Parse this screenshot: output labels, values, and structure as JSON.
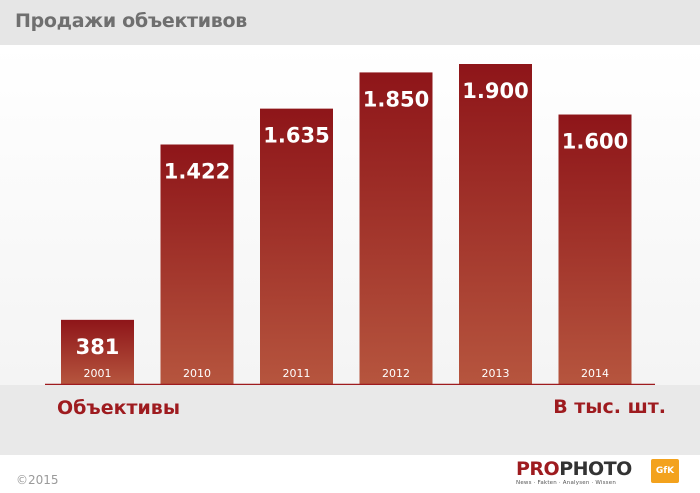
{
  "header": {
    "title": "Продажи объективов"
  },
  "chart_data": {
    "type": "bar",
    "title": "Продажи объективов",
    "categories": [
      "2001",
      "2010",
      "2011",
      "2012",
      "2013",
      "2014"
    ],
    "values": [
      381,
      1422,
      1635,
      1850,
      1900,
      1600
    ],
    "value_labels": [
      "381",
      "1.422",
      "1.635",
      "1.850",
      "1.900",
      "1.600"
    ],
    "series": [
      {
        "name": "Объективы",
        "values": [
          381,
          1422,
          1635,
          1850,
          1900,
          1600
        ]
      }
    ],
    "ylabel": "В тыс. шт.",
    "ylim": [
      0,
      1900
    ],
    "grid": false,
    "colors": {
      "bar_top": "#8e1519",
      "bar_bottom": "#b6553e",
      "axis": "#9e1b1f"
    }
  },
  "labels": {
    "series": "Объективы",
    "unit": "В тыс. шт."
  },
  "footer": {
    "copyright": "©2015",
    "logo_part1": "PRO",
    "logo_part2": "PHOTO",
    "logo_tagline": "News · Fakten · Analysen · Wissen",
    "partner_logo": "GfK"
  }
}
